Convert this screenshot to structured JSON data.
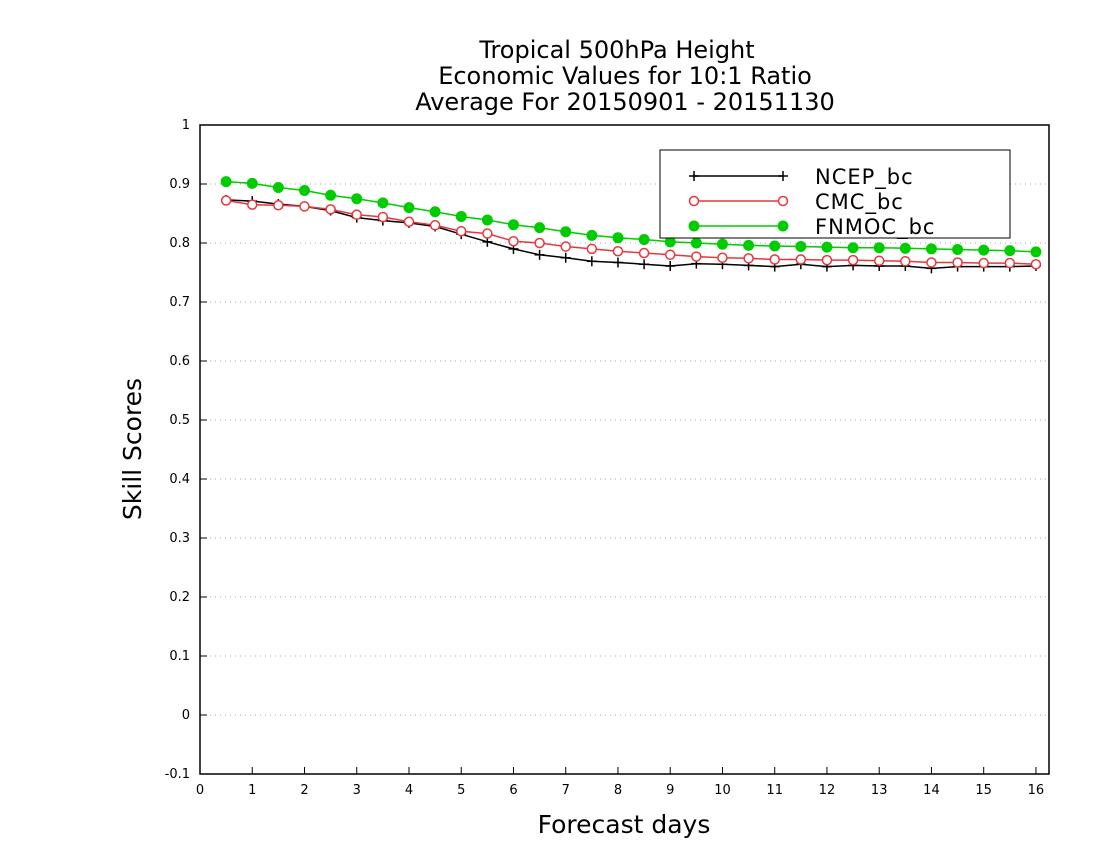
{
  "chart_data": {
    "type": "line",
    "title": [
      "Tropical 500hPa Height",
      "Economic Values for 10:1 Ratio",
      "Average For 20150901 - 20151130"
    ],
    "xlabel": "Forecast days",
    "ylabel": "Skill Scores",
    "xlim": [
      0,
      16.25
    ],
    "ylim": [
      -0.1,
      1
    ],
    "xticks": [
      "0",
      "1",
      "2",
      "3",
      "4",
      "5",
      "6",
      "7",
      "8",
      "9",
      "10",
      "11",
      "12",
      "13",
      "14",
      "15",
      "16"
    ],
    "yticks": [
      "-0.1",
      "0",
      "0.1",
      "0.2",
      "0.3",
      "0.4",
      "0.5",
      "0.6",
      "0.7",
      "0.8",
      "0.9",
      "1"
    ],
    "grid": "horizontal dotted",
    "legend_position": "top-right",
    "x": [
      0.5,
      1,
      1.5,
      2,
      2.5,
      3,
      3.5,
      4,
      4.5,
      5,
      5.5,
      6,
      6.5,
      7,
      7.5,
      8,
      8.5,
      9,
      9.5,
      10,
      10.5,
      11,
      11.5,
      12,
      12.5,
      13,
      13.5,
      14,
      14.5,
      15,
      15.5,
      16
    ],
    "series": [
      {
        "name": "NCEP_bc",
        "color": "#000000",
        "marker": "plus",
        "values": [
          0.873,
          0.871,
          0.866,
          0.862,
          0.855,
          0.843,
          0.838,
          0.834,
          0.828,
          0.815,
          0.802,
          0.79,
          0.78,
          0.775,
          0.769,
          0.767,
          0.764,
          0.761,
          0.765,
          0.764,
          0.762,
          0.76,
          0.764,
          0.76,
          0.762,
          0.761,
          0.761,
          0.757,
          0.76,
          0.76,
          0.76,
          0.761
        ]
      },
      {
        "name": "CMC_bc",
        "color": "#e8373c",
        "marker": "open-circle",
        "values": [
          0.872,
          0.865,
          0.864,
          0.862,
          0.857,
          0.848,
          0.844,
          0.836,
          0.83,
          0.82,
          0.816,
          0.803,
          0.8,
          0.794,
          0.79,
          0.786,
          0.783,
          0.78,
          0.777,
          0.775,
          0.774,
          0.772,
          0.772,
          0.771,
          0.771,
          0.77,
          0.769,
          0.767,
          0.767,
          0.766,
          0.766,
          0.764
        ]
      },
      {
        "name": "FNMOC_bc",
        "color": "#00cc00",
        "marker": "filled-circle",
        "values": [
          0.904,
          0.901,
          0.894,
          0.889,
          0.881,
          0.875,
          0.868,
          0.86,
          0.853,
          0.845,
          0.839,
          0.831,
          0.826,
          0.819,
          0.813,
          0.809,
          0.806,
          0.802,
          0.8,
          0.798,
          0.796,
          0.795,
          0.794,
          0.793,
          0.792,
          0.792,
          0.791,
          0.79,
          0.789,
          0.788,
          0.787,
          0.785
        ]
      }
    ]
  }
}
